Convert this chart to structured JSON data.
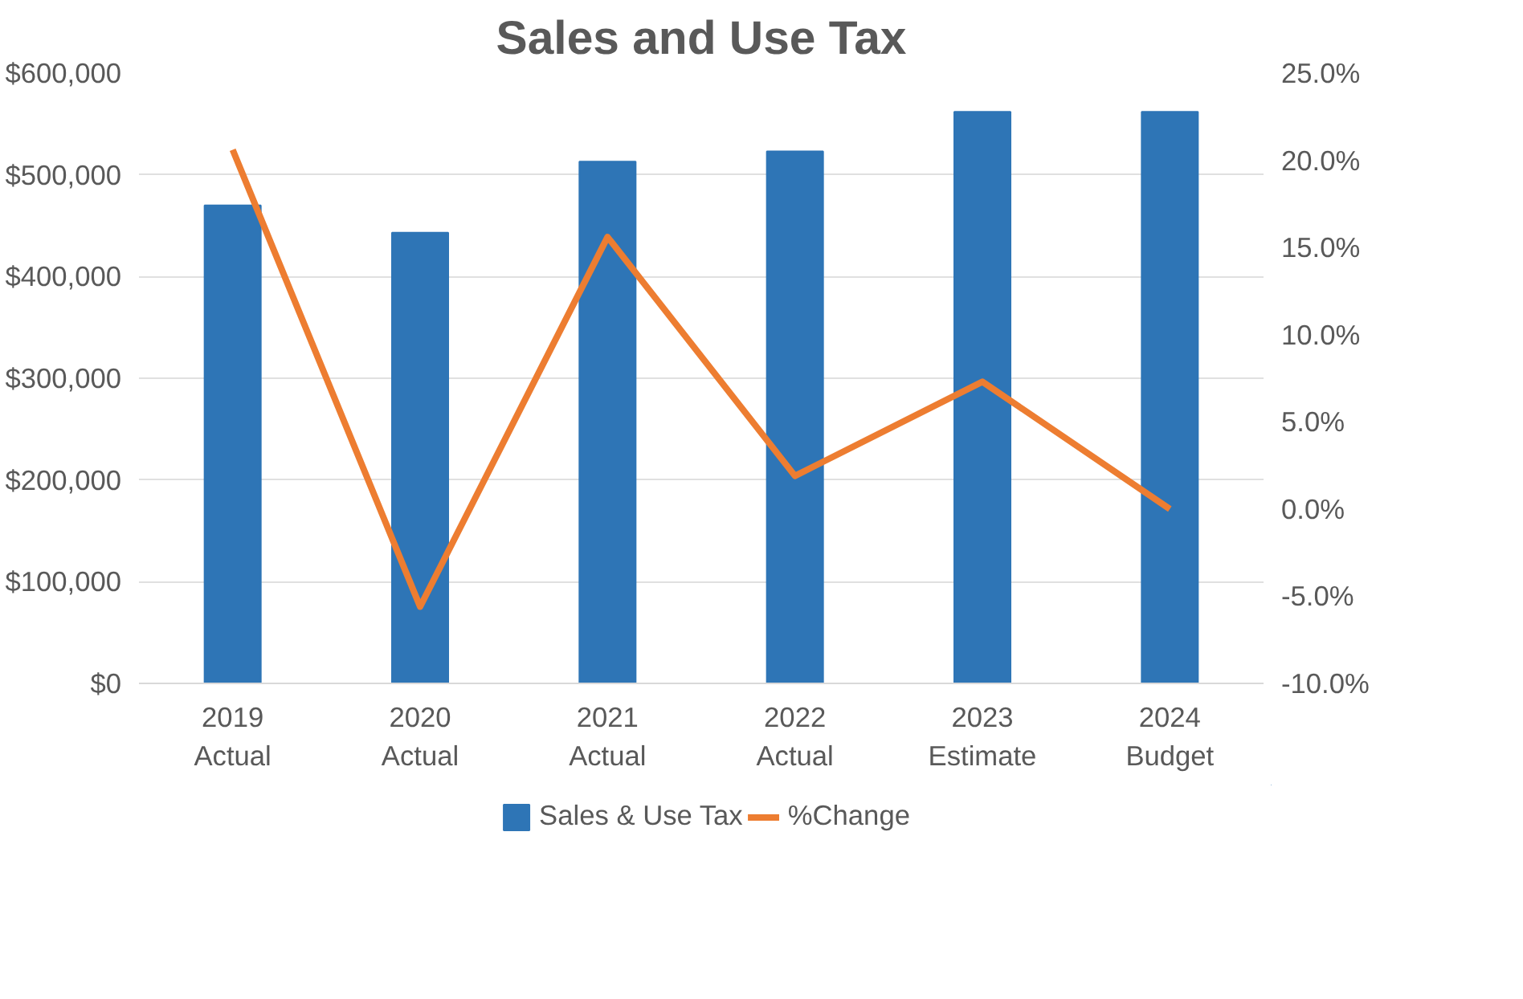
{
  "chart_data": {
    "type": "bar",
    "title": "Sales and Use Tax",
    "categories": [
      "2019\nActual",
      "2020\nActual",
      "2021\nActual",
      "2022\nActual",
      "2023\nEstimate",
      "2024\nBudget"
    ],
    "series": [
      {
        "name": "Sales & Use Tax",
        "color": "#2e75b6",
        "values": [
          470000,
          443000,
          513000,
          523000,
          562000,
          562000
        ]
      },
      {
        "name": "%Change",
        "type": "line",
        "axis": "y2",
        "color": "#ed7d31",
        "values": [
          20.6,
          -5.6,
          15.6,
          1.9,
          7.3,
          0.0
        ]
      }
    ],
    "ylim": [
      0,
      600000
    ],
    "yticks": [
      {
        "value": 0,
        "label": "$0"
      },
      {
        "value": 100000,
        "label": "$100,000"
      },
      {
        "value": 200000,
        "label": "$200,000"
      },
      {
        "value": 300000,
        "label": "$300,000"
      },
      {
        "value": 400000,
        "label": "$400,000"
      },
      {
        "value": 500000,
        "label": "$500,000"
      },
      {
        "value": 600000,
        "label": "$600,000"
      }
    ],
    "y2lim": [
      -10,
      25
    ],
    "y2ticks": [
      {
        "value": -10,
        "label": "-10.0%"
      },
      {
        "value": -5,
        "label": "-5.0%"
      },
      {
        "value": 0,
        "label": "0.0%"
      },
      {
        "value": 5,
        "label": "5.0%"
      },
      {
        "value": 10,
        "label": "10.0%"
      },
      {
        "value": 15,
        "label": "15.0%"
      },
      {
        "value": 20,
        "label": "20.0%"
      },
      {
        "value": 25,
        "label": "25.0%"
      }
    ],
    "grid": "y",
    "legend": "bottom"
  }
}
